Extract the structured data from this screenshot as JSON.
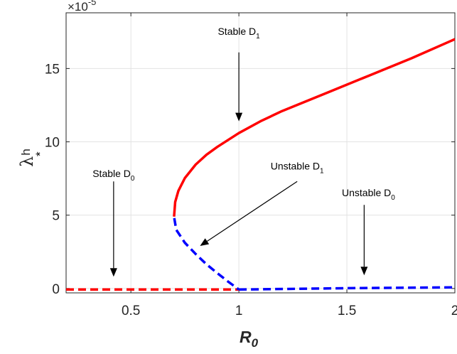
{
  "chart_data": {
    "type": "line",
    "xlabel_main": "R",
    "xlabel_sub": "0",
    "ylabel_main": "λ",
    "ylabel_sub": "h",
    "ylabel_sup": "*",
    "y_multiplier_base": "×10",
    "y_multiplier_exp": "-5",
    "xlim": [
      0.2,
      2
    ],
    "ylim": [
      -0.3,
      18.8
    ],
    "x_ticks": [
      0.5,
      1,
      1.5,
      2
    ],
    "x_tick_labels": [
      "0.5",
      "1",
      "1.5",
      "2"
    ],
    "y_ticks": [
      0,
      5,
      10,
      15
    ],
    "y_tick_labels": [
      "0",
      "5",
      "10",
      "15"
    ],
    "grid": true,
    "colors": {
      "stable": "#ff0000",
      "unstable": "#0000ff",
      "arrow": "#000000",
      "grid": "#e3e3e3"
    },
    "series": [
      {
        "style": "dashed",
        "color": "#ff0000",
        "x": [
          0.2,
          1.0
        ],
        "y": [
          -0.07,
          -0.07
        ]
      },
      {
        "style": "dashed",
        "color": "#0000ff",
        "x": [
          1.0,
          1.5,
          2.0
        ],
        "y": [
          -0.07,
          0.02,
          0.08
        ]
      },
      {
        "style": "dashed",
        "color": "#0000ff",
        "x": [
          0.701,
          0.71,
          0.75,
          0.8,
          0.85,
          0.9,
          0.95,
          1.0
        ],
        "y": [
          4.8,
          4.0,
          3.12,
          2.35,
          1.65,
          1.05,
          0.47,
          -0.07
        ]
      },
      {
        "style": "solid",
        "color": "#ff0000",
        "x": [
          0.7,
          0.705,
          0.72,
          0.75,
          0.8,
          0.85,
          0.9,
          1.0,
          1.1,
          1.2,
          1.4,
          1.6,
          1.8,
          2.0
        ],
        "y": [
          4.9,
          5.9,
          6.66,
          7.53,
          8.45,
          9.12,
          9.65,
          10.6,
          11.4,
          12.1,
          13.3,
          14.5,
          15.7,
          17.0
        ]
      }
    ],
    "annotations": [
      {
        "main": "Stable D",
        "sub": "1",
        "text_x": 1.0,
        "text_y": 17.3,
        "tail": [
          1.0,
          16.1
        ],
        "head": [
          1.0,
          11.4
        ]
      },
      {
        "main": "Unstable D",
        "sub": "1",
        "text_x": 1.27,
        "text_y": 8.1,
        "tail": [
          1.27,
          7.3
        ],
        "head": [
          0.82,
          2.9
        ]
      },
      {
        "main": "Stable D",
        "sub": "0",
        "text_x": 0.42,
        "text_y": 7.6,
        "tail": [
          0.42,
          7.3
        ],
        "head": [
          0.42,
          0.8
        ]
      },
      {
        "main": "Unstable D",
        "sub": "0",
        "text_x": 1.6,
        "text_y": 6.3,
        "tail": [
          1.58,
          5.7
        ],
        "head": [
          1.58,
          0.9
        ]
      }
    ]
  }
}
